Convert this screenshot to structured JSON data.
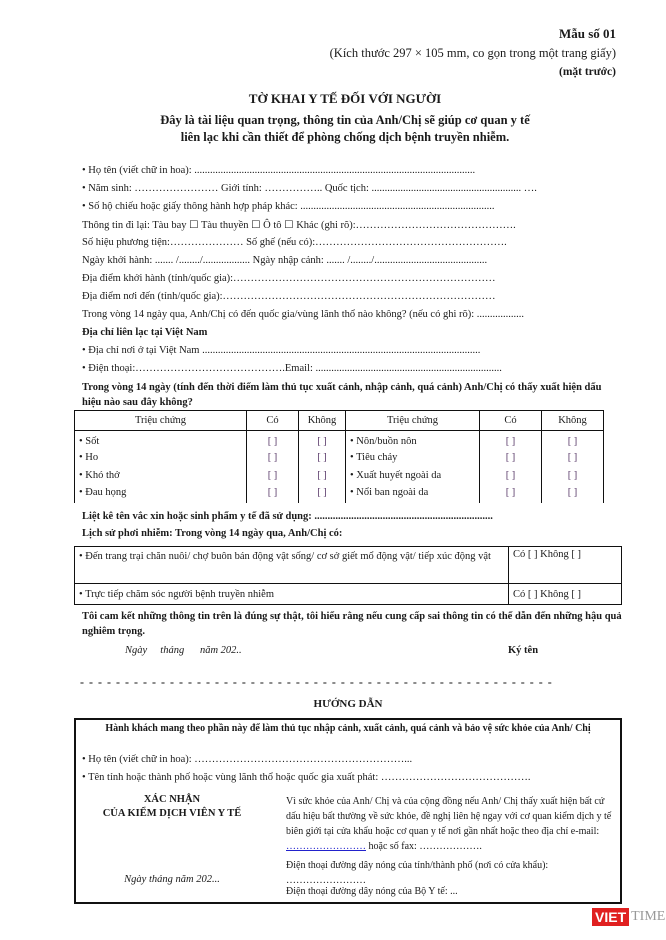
{
  "header": {
    "form_no": "Mẫu số 01",
    "size_note": "(Kích thước 297 × 105 mm, co gọn trong một trang giấy)",
    "side": "(mặt trước)",
    "title": "TỜ KHAI Y TẾ ĐỐI VỚI NGƯỜI",
    "subtitle_1": "Đây là tài liệu quan trọng, thông tin của Anh/Chị sẽ giúp cơ quan y tế",
    "subtitle_2": "liên lạc khi cần thiết để phòng chống dịch bệnh truyền nhiễm."
  },
  "fields": [
    "• Họ tên (viết chữ in hoa): ...........................................................................................................",
    "• Năm sinh: …………………… Giới tính: …………….. Quốc tịch: ......................................................... ….",
    "• Số hộ chiếu hoặc giấy thông hành hợp pháp khác: ..........................................................................",
    "Thông tin đi lại: Tàu bay ☐ Tàu thuyền ☐ Ô tô ☐ Khác (ghi rõ):……………………………………….",
    "Số hiệu phương tiện:………………… Số ghế (nếu có):……………………………………………….",
    "Ngày khởi hành: ....... /......../.................. Ngày nhập cảnh: ....... /......../...........................................",
    "Địa điểm khởi hành (tỉnh/quốc gia):…………………………………………………………………",
    "Địa điểm nơi đến (tỉnh/quốc gia):……………………………………………………………………",
    "Trong vòng 14 ngày qua, Anh/Chị có đến quốc gia/vùng lãnh thổ nào không? (nếu có ghi rõ): ..................",
    "Địa chỉ liên lạc tại Việt Nam",
    "• Địa chỉ nơi ở tại Việt Nam ..........................................................................................................",
    "• Điện thoại:…………………………………….Email: ......................................................................."
  ],
  "symptom_question": "Trong vòng 14 ngày (tính đến thời điểm làm thủ tục xuất cảnh, nhập cảnh, quá cảnh) Anh/Chị có thấy xuất hiện dấu hiệu nào sau đây không?",
  "symptom_table": {
    "headers": [
      "Triệu chứng",
      "Có",
      "Không",
      "Triệu chứng",
      "Có",
      "Không"
    ],
    "box": "[ ]",
    "left": [
      "• Sốt",
      "• Ho",
      "• Khó thở",
      "• Đau họng"
    ],
    "right": [
      "• Nôn/buồn nôn",
      "• Tiêu chảy",
      "• Xuất huyết ngoài da",
      "• Nổi ban ngoài da"
    ]
  },
  "vaccine": "Liệt kê tên vắc xin hoặc sinh phẩm y tế đã sử dụng: ....................................................................",
  "exposure_title": "Lịch sử phơi nhiễm: Trong vòng 14 ngày qua, Anh/Chị có:",
  "exposure": [
    {
      "text": "• Đến trang trại chăn nuôi/ chợ buôn bán động vật sống/ cơ sở giết mổ động vật/ tiếp xúc động vật",
      "answer": "Có [ ] Không [ ]"
    },
    {
      "text": "• Trực tiếp chăm sóc người bệnh truyền nhiễm",
      "answer": "Có [ ] Không [ ]"
    }
  ],
  "commitment": "Tôi cam kết những thông tin trên là đúng sự thật, tôi hiểu rằng nếu cung cấp sai thông tin có thể dẫn đến những hậu quả nghiêm trọng.",
  "date_line": "Ngày     tháng      năm 202..",
  "signature": "Ký tên",
  "cut_line": "- - - - - - - - - - - - - - - - - - - - - - - - - - - - - - - - - - - - - - - - - - - - - - - - - - - - -",
  "guide": {
    "title": "HƯỚNG DẪN",
    "box_title": "Hành khách mang theo phần này để làm thủ tục nhập cảnh, xuất cảnh, quá cảnh và bảo vệ sức khỏe của Anh/ Chị",
    "name": "• Họ tên (viết chữ in hoa): ……………………………………………………...",
    "origin": "• Tên tỉnh hoặc thành phố hoặc vùng lãnh thổ hoặc quốc gia xuất phát: …………………………………….",
    "confirm_1": "XÁC NHẬN",
    "confirm_2": "CỦA KIỂM DỊCH VIÊN Y TẾ",
    "confirm_date": "Ngày   tháng   năm 202...",
    "advice_pre": "Vì sức khỏe của Anh/ Chị và của cộng đồng nếu Anh/ Chị thấy xuất hiện bất cứ dấu hiệu bất thường về sức khỏe, đề nghị liên hệ ngay với cơ quan kiểm dịch y tế biên giới tại cửa khẩu hoặc cơ quan y tế nơi gần nhất hoặc theo địa chỉ e-mail: ",
    "email_link": "……………………",
    "advice_post": " hoặc số fax: ……………….",
    "hotline_province": "Điện thoại đường dây nóng của tỉnh/thành phố (nơi có cửa khẩu): ……………………",
    "hotline_ministry": "Điện thoại đường dây nóng của Bộ Y tế: ..."
  },
  "watermark": {
    "part1": "VIET",
    "part2": "TIMES",
    "color": "#e02020"
  }
}
